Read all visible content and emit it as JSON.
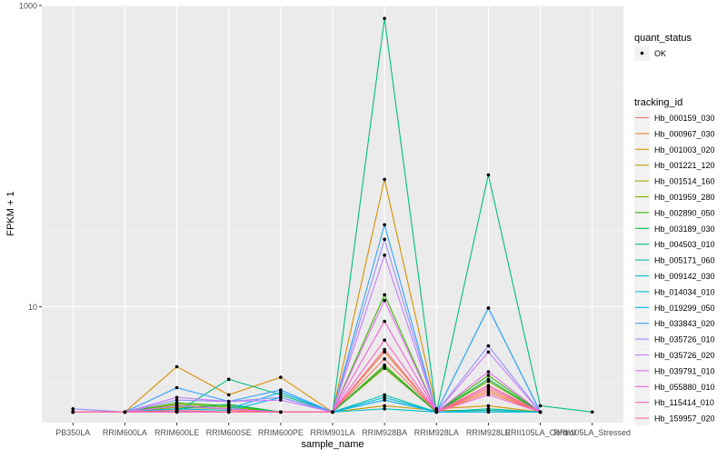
{
  "chart_data": {
    "type": "line",
    "xlabel": "sample_name",
    "ylabel": "FPKM + 1",
    "y_scale": "log10",
    "ylim": [
      1.7,
      1000
    ],
    "y_ticks": [
      {
        "value": 10,
        "label": "10"
      },
      {
        "value": 1000,
        "label": "1000"
      }
    ],
    "categories": [
      "PB350LA",
      "RRIM600LA",
      "RRIM600LE",
      "RRIM600SE",
      "RRIM600PE",
      "RRIM901LA",
      "RRIM928BA",
      "RRIM928LA",
      "RRIM928LE",
      "RRII105LA_Control",
      "RRII105LA_Stressed"
    ],
    "legend_quant": {
      "title": "quant_status",
      "items": [
        "OK"
      ]
    },
    "legend_tracking": {
      "title": "tracking_id"
    },
    "series": [
      {
        "name": "Hb_000159_030",
        "color": "#F8766D",
        "values": [
          2.0,
          2.0,
          2.1,
          2.05,
          2.0,
          2.0,
          4.5,
          2.0,
          2.8,
          2.0,
          null
        ]
      },
      {
        "name": "Hb_000967_030",
        "color": "#EA8331",
        "values": [
          2.0,
          2.0,
          2.2,
          2.1,
          2.0,
          2.0,
          5.0,
          2.0,
          2.7,
          2.0,
          null
        ]
      },
      {
        "name": "Hb_001003_020",
        "color": "#D89000",
        "values": [
          2.0,
          2.0,
          4.0,
          2.6,
          3.4,
          2.0,
          70,
          2.1,
          2.2,
          2.0,
          null
        ]
      },
      {
        "name": "Hb_001221_120",
        "color": "#C09B00",
        "values": [
          2.0,
          2.0,
          2.0,
          2.0,
          2.0,
          2.0,
          2.2,
          2.05,
          2.05,
          2.0,
          null
        ]
      },
      {
        "name": "Hb_001514_160",
        "color": "#A3A500",
        "values": [
          2.0,
          2.0,
          2.15,
          2.1,
          2.0,
          2.0,
          3.9,
          2.0,
          3.0,
          2.0,
          null
        ]
      },
      {
        "name": "Hb_001959_280",
        "color": "#7CAE00",
        "values": [
          2.0,
          2.0,
          2.25,
          2.15,
          2.0,
          2.0,
          4.1,
          2.0,
          3.2,
          2.0,
          null
        ]
      },
      {
        "name": "Hb_002890_050",
        "color": "#39B600",
        "values": [
          2.0,
          2.0,
          2.3,
          2.2,
          2.0,
          2.0,
          12,
          2.0,
          3.5,
          2.0,
          null
        ]
      },
      {
        "name": "Hb_003189_030",
        "color": "#00BB4E",
        "values": [
          2.0,
          2.0,
          2.1,
          2.25,
          2.0,
          2.0,
          4.0,
          2.0,
          3.3,
          2.0,
          null
        ]
      },
      {
        "name": "Hb_004503_010",
        "color": "#00BF7D",
        "values": [
          2.0,
          2.0,
          2.0,
          3.3,
          2.6,
          2.0,
          820,
          2.0,
          75,
          2.2,
          2.0
        ]
      },
      {
        "name": "Hb_005171_060",
        "color": "#00C1A3",
        "values": [
          2.0,
          2.0,
          2.05,
          2.0,
          2.0,
          2.0,
          2.6,
          2.0,
          2.1,
          2.0,
          null
        ]
      },
      {
        "name": "Hb_009142_030",
        "color": "#00BFC4",
        "values": [
          2.0,
          2.0,
          2.0,
          2.0,
          2.0,
          2.0,
          2.1,
          2.0,
          2.05,
          2.0,
          null
        ]
      },
      {
        "name": "Hb_014034_010",
        "color": "#00BAE0",
        "values": [
          2.0,
          2.0,
          2.1,
          2.05,
          2.5,
          2.0,
          2.5,
          2.0,
          2.0,
          2.0,
          null
        ]
      },
      {
        "name": "Hb_019299_050",
        "color": "#00B0F6",
        "values": [
          2.0,
          2.0,
          2.2,
          2.1,
          2.7,
          2.0,
          2.4,
          2.0,
          9.8,
          2.0,
          null
        ]
      },
      {
        "name": "Hb_033843_020",
        "color": "#35A2FF",
        "values": [
          2.0,
          2.0,
          2.9,
          2.35,
          2.8,
          2.0,
          35,
          2.0,
          9.8,
          2.0,
          null
        ]
      },
      {
        "name": "Hb_035726_010",
        "color": "#9590FF",
        "values": [
          2.1,
          2.0,
          2.4,
          2.35,
          2.5,
          2.0,
          28,
          2.0,
          5.5,
          2.0,
          null
        ]
      },
      {
        "name": "Hb_035726_020",
        "color": "#C77CFF",
        "values": [
          2.0,
          2.0,
          2.5,
          2.35,
          2.4,
          2.0,
          22,
          2.0,
          5.0,
          2.0,
          null
        ]
      },
      {
        "name": "Hb_039791_010",
        "color": "#E76BF3",
        "values": [
          2.0,
          2.0,
          2.2,
          2.1,
          2.0,
          2.0,
          11,
          2.0,
          3.7,
          2.0,
          null
        ]
      },
      {
        "name": "Hb_055880_010",
        "color": "#FA62DB",
        "values": [
          2.0,
          2.0,
          2.0,
          2.0,
          2.0,
          2.0,
          8.0,
          2.0,
          2.6,
          2.0,
          null
        ]
      },
      {
        "name": "Hb_115414_010",
        "color": "#FF62BC",
        "values": [
          2.0,
          2.0,
          2.0,
          2.0,
          2.0,
          2.0,
          6.0,
          2.0,
          3.0,
          2.0,
          null
        ]
      },
      {
        "name": "Hb_159957_020",
        "color": "#FF6C91",
        "values": [
          2.0,
          2.0,
          2.05,
          2.0,
          2.0,
          2.0,
          5.2,
          2.0,
          2.9,
          2.0,
          null
        ]
      }
    ]
  }
}
